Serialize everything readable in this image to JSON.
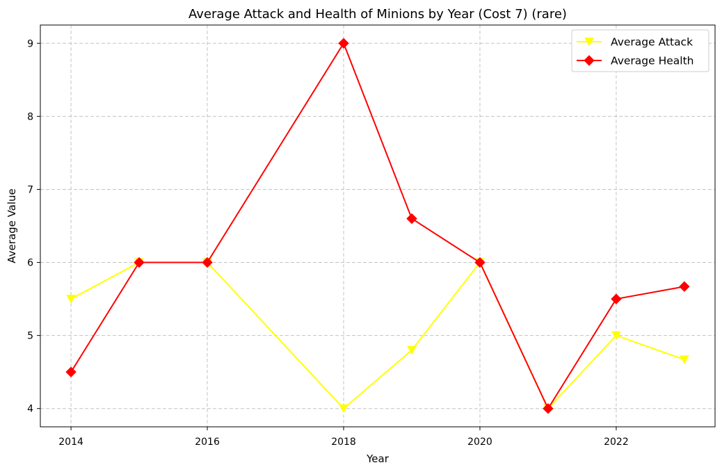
{
  "chart_data": {
    "type": "line",
    "title": "Average Attack and Health of Minions by Year (Cost 7) (rare)",
    "xlabel": "Year",
    "ylabel": "Average Value",
    "x": [
      2014,
      2015,
      2016,
      2018,
      2019,
      2020,
      2021,
      2022,
      2023
    ],
    "xticks": [
      2014,
      2016,
      2018,
      2020,
      2022
    ],
    "yticks": [
      4,
      5,
      6,
      7,
      8,
      9
    ],
    "xlim": [
      2013.55,
      2023.45
    ],
    "ylim": [
      3.75,
      9.25
    ],
    "grid": true,
    "legend_position": "top-right",
    "series": [
      {
        "name": "Average Attack",
        "color": "#ffff00",
        "marker": "triangle-down",
        "values": [
          5.5,
          6.0,
          6.0,
          4.0,
          4.8,
          6.0,
          4.0,
          5.0,
          4.67
        ]
      },
      {
        "name": "Average Health",
        "color": "#ff0000",
        "marker": "diamond",
        "values": [
          4.5,
          6.0,
          6.0,
          9.0,
          6.6,
          6.0,
          4.0,
          5.5,
          5.67
        ]
      }
    ]
  }
}
